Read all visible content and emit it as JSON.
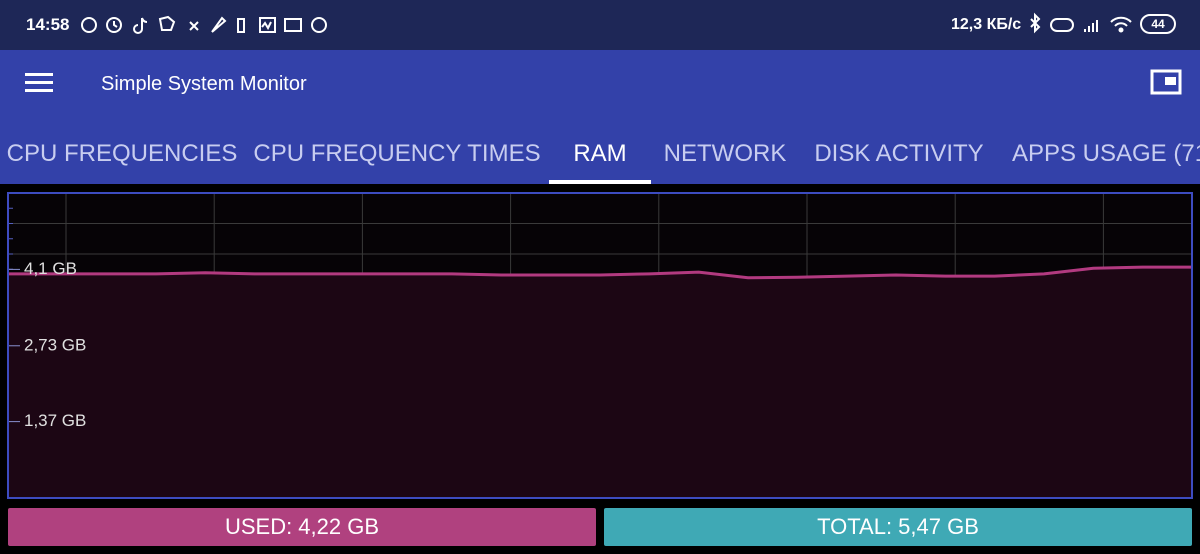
{
  "status_bar": {
    "time": "14:58",
    "network_speed": "12,3 КБ/с",
    "battery": "44"
  },
  "app_bar": {
    "title": "Simple System Monitor"
  },
  "tabs": [
    "CPU FREQUENCIES",
    "CPU FREQUENCY TIMES",
    "RAM",
    "NETWORK",
    "DISK ACTIVITY",
    "APPS USAGE (71"
  ],
  "active_tab": 2,
  "chart_data": {
    "type": "line",
    "values": [
      4.02,
      4.02,
      4.02,
      4.02,
      4.04,
      4.02,
      4.02,
      4.02,
      4.02,
      4.02,
      4.0,
      4.0,
      4.0,
      4.02,
      4.05,
      3.95,
      3.96,
      3.98,
      4.0,
      3.98,
      3.98,
      4.02,
      4.12,
      4.14,
      4.14
    ],
    "color": "#b23a80",
    "ylim": [
      0,
      5.47
    ],
    "yticks": [
      {
        "value": 4.1,
        "label": "4,1 GB"
      },
      {
        "value": 2.73,
        "label": "2,73 GB"
      },
      {
        "value": 1.37,
        "label": "1,37 GB"
      }
    ],
    "grid": true
  },
  "footer": {
    "used": "USED: 4,22 GB",
    "total": "TOTAL: 5,47 GB"
  }
}
